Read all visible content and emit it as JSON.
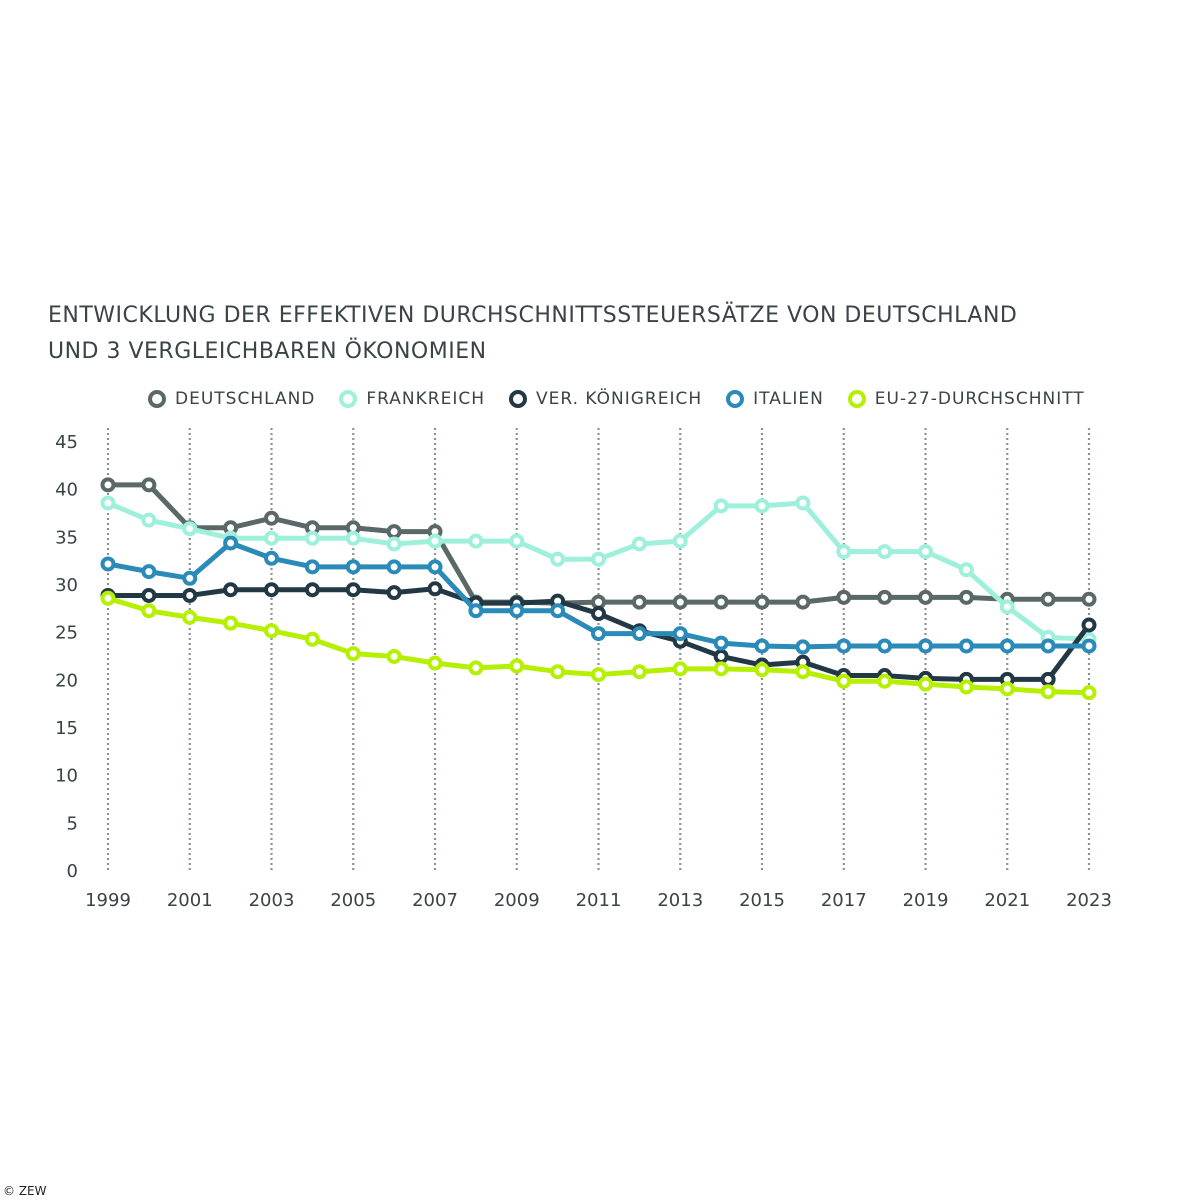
{
  "chart_data": {
    "type": "line",
    "title_line1": "ENTWICKLUNG DER EFFEKTIVEN DURCHSCHNITTSSTEUERSÄTZE VON DEUTSCHLAND",
    "title_line2": "UND 3 VERGLEICHBAREN ÖKONOMIEN",
    "xlabel": "",
    "ylabel": "",
    "ylim": [
      0,
      45
    ],
    "yticks": [
      "0",
      "5",
      "10",
      "15",
      "20",
      "25",
      "30",
      "35",
      "40",
      "45"
    ],
    "xticks": [
      "1999",
      "2001",
      "2003",
      "2005",
      "2007",
      "2009",
      "2011",
      "2013",
      "2015",
      "2017",
      "2019",
      "2021",
      "2023"
    ],
    "x": [
      1999,
      2000,
      2001,
      2002,
      2003,
      2004,
      2005,
      2006,
      2007,
      2008,
      2009,
      2010,
      2011,
      2012,
      2013,
      2014,
      2015,
      2016,
      2017,
      2018,
      2019,
      2020,
      2021,
      2022,
      2023
    ],
    "grid": "vertical dotted lines every 2 years",
    "legend_position": "top",
    "series": [
      {
        "name": "DEUTSCHLAND",
        "color": "#5a6868",
        "values": [
          40.4,
          40.4,
          35.9,
          35.9,
          36.9,
          35.9,
          35.9,
          35.5,
          35.5,
          28.1,
          28.1,
          28.0,
          28.1,
          28.1,
          28.1,
          28.1,
          28.1,
          28.1,
          28.6,
          28.6,
          28.6,
          28.6,
          28.4,
          28.4,
          28.4
        ]
      },
      {
        "name": "FRANKREICH",
        "color": "#9ef0dc",
        "values": [
          38.5,
          36.7,
          35.8,
          34.8,
          34.8,
          34.8,
          34.8,
          34.2,
          34.5,
          34.5,
          34.5,
          32.6,
          32.6,
          34.2,
          34.5,
          38.2,
          38.2,
          38.5,
          33.4,
          33.4,
          33.4,
          31.5,
          27.6,
          24.4,
          24.2
        ]
      },
      {
        "name": "VER. KÖNIGREICH",
        "color": "#233845",
        "values": [
          28.8,
          28.8,
          28.8,
          29.4,
          29.4,
          29.4,
          29.4,
          29.1,
          29.5,
          28.0,
          28.0,
          28.2,
          26.9,
          25.1,
          24.0,
          22.4,
          21.5,
          21.8,
          20.4,
          20.4,
          20.1,
          20.0,
          20.0,
          20.0,
          25.7
        ]
      },
      {
        "name": "ITALIEN",
        "color": "#2a8ab8",
        "values": [
          32.1,
          31.3,
          30.6,
          34.3,
          32.7,
          31.8,
          31.8,
          31.8,
          31.8,
          27.2,
          27.2,
          27.2,
          24.8,
          24.8,
          24.8,
          23.8,
          23.5,
          23.4,
          23.5,
          23.5,
          23.5,
          23.5,
          23.5,
          23.5,
          23.5
        ]
      },
      {
        "name": "EU-27-DURCHSCHNITT",
        "color": "#b5f000",
        "values": [
          28.5,
          27.2,
          26.5,
          25.9,
          25.1,
          24.2,
          22.7,
          22.4,
          21.7,
          21.2,
          21.4,
          20.8,
          20.5,
          20.8,
          21.1,
          21.1,
          21.0,
          20.8,
          19.8,
          19.8,
          19.5,
          19.2,
          19.0,
          18.7,
          18.6
        ]
      }
    ]
  },
  "footer": {
    "copyright": "© ZEW"
  }
}
